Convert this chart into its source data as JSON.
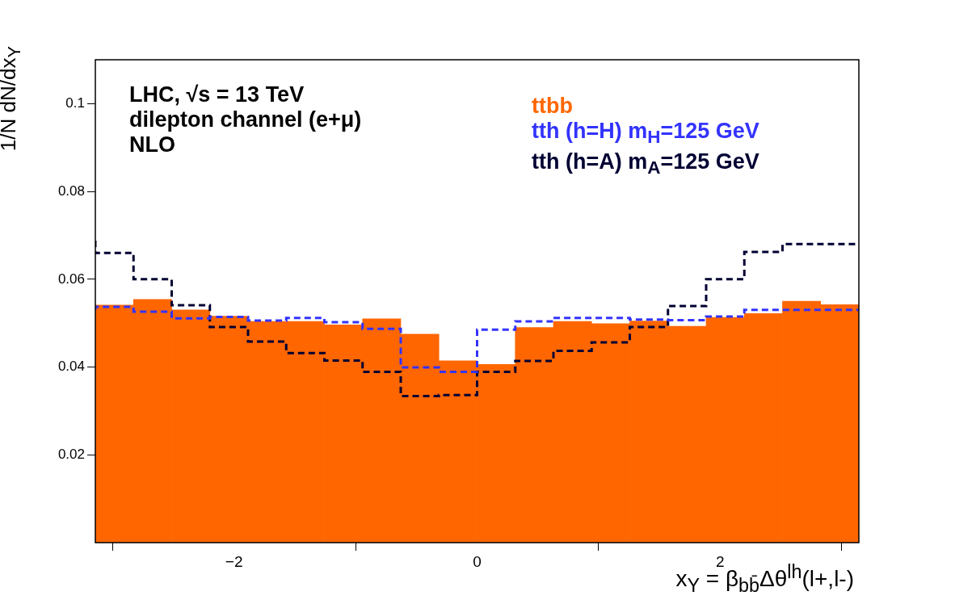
{
  "chart_data": {
    "type": "histogram",
    "xlabel": "x$_{Y}$ = β$_{bb̄}$Δθ$^{lh}$(l+,l-)",
    "ylabel": "1/N dN/dx$_{Y}$",
    "annotations": [
      "LHC, √s = 13 TeV",
      "dilepton channel (e+μ)",
      "NLO"
    ],
    "bins": [
      -3.1416,
      -2.8274,
      -2.5133,
      -2.1991,
      -1.885,
      -1.5708,
      -1.2566,
      -0.9425,
      -0.6283,
      -0.3142,
      0,
      0.3142,
      0.6283,
      0.9425,
      1.2566,
      1.5708,
      1.885,
      2.1991,
      2.5133,
      2.8274,
      3.1416
    ],
    "series": [
      {
        "name": "ttbb",
        "color": "#ff6600",
        "values": [
          0.0541,
          0.0554,
          0.053,
          0.0516,
          0.0504,
          0.0504,
          0.0496,
          0.051,
          0.0475,
          0.0414,
          0.0406,
          0.049,
          0.0504,
          0.0499,
          0.0505,
          0.0493,
          0.0513,
          0.0522,
          0.055,
          0.0542
        ]
      },
      {
        "name": "tth (h=H)  m$_{H}$=125 GeV",
        "type": "step",
        "line_style": "dashed",
        "x": [
          -3.1416,
          -2.8274,
          -2.5133,
          -2.1991,
          -1.885,
          -1.5708,
          -1.2566,
          -0.9425,
          -0.6283,
          -0.3142,
          0,
          0.3142,
          0.6283,
          0.9425,
          1.2566,
          1.5708,
          1.885,
          2.1991,
          2.5133,
          2.8274,
          3.1416
        ],
        "color": "#3333ff",
        "values": [
          0.053,
          0.0537,
          0.0526,
          0.0511,
          0.0514,
          0.0506,
          0.0512,
          0.0502,
          0.0487,
          0.0399,
          0.0389,
          0.0485,
          0.0504,
          0.0512,
          0.0512,
          0.0508,
          0.0507,
          0.0515,
          0.053,
          0.053,
          0.053
        ]
      },
      {
        "name": "tth (h=A)  m$_{A}$=125 GeV",
        "type": "step",
        "line_style": "dashed",
        "x": [
          -3.1416,
          -2.8274,
          -2.5133,
          -2.1991,
          -1.885,
          -1.5708,
          -1.2566,
          -0.9425,
          -0.6283,
          -0.3142,
          0,
          0.3142,
          0.6283,
          0.9425,
          1.2566,
          1.5708,
          1.885,
          2.1991,
          2.5133,
          2.8274,
          3.1416
        ],
        "color": "#000033",
        "values": [
          0.0688,
          0.066,
          0.06,
          0.0541,
          0.0491,
          0.0458,
          0.0432,
          0.0415,
          0.0389,
          0.0334,
          0.0336,
          0.0389,
          0.0414,
          0.0437,
          0.0456,
          0.0491,
          0.0539,
          0.06,
          0.0662,
          0.068,
          0.068
        ]
      }
    ],
    "xlim": [
      -3.1416,
      3.1416
    ],
    "xticks": [
      -2,
      0,
      2
    ],
    "ylim": [
      0,
      0.11
    ],
    "yticks": [
      0.02,
      0.04,
      0.06,
      0.08,
      0.1
    ],
    "legend": "top right",
    "grid": false
  }
}
